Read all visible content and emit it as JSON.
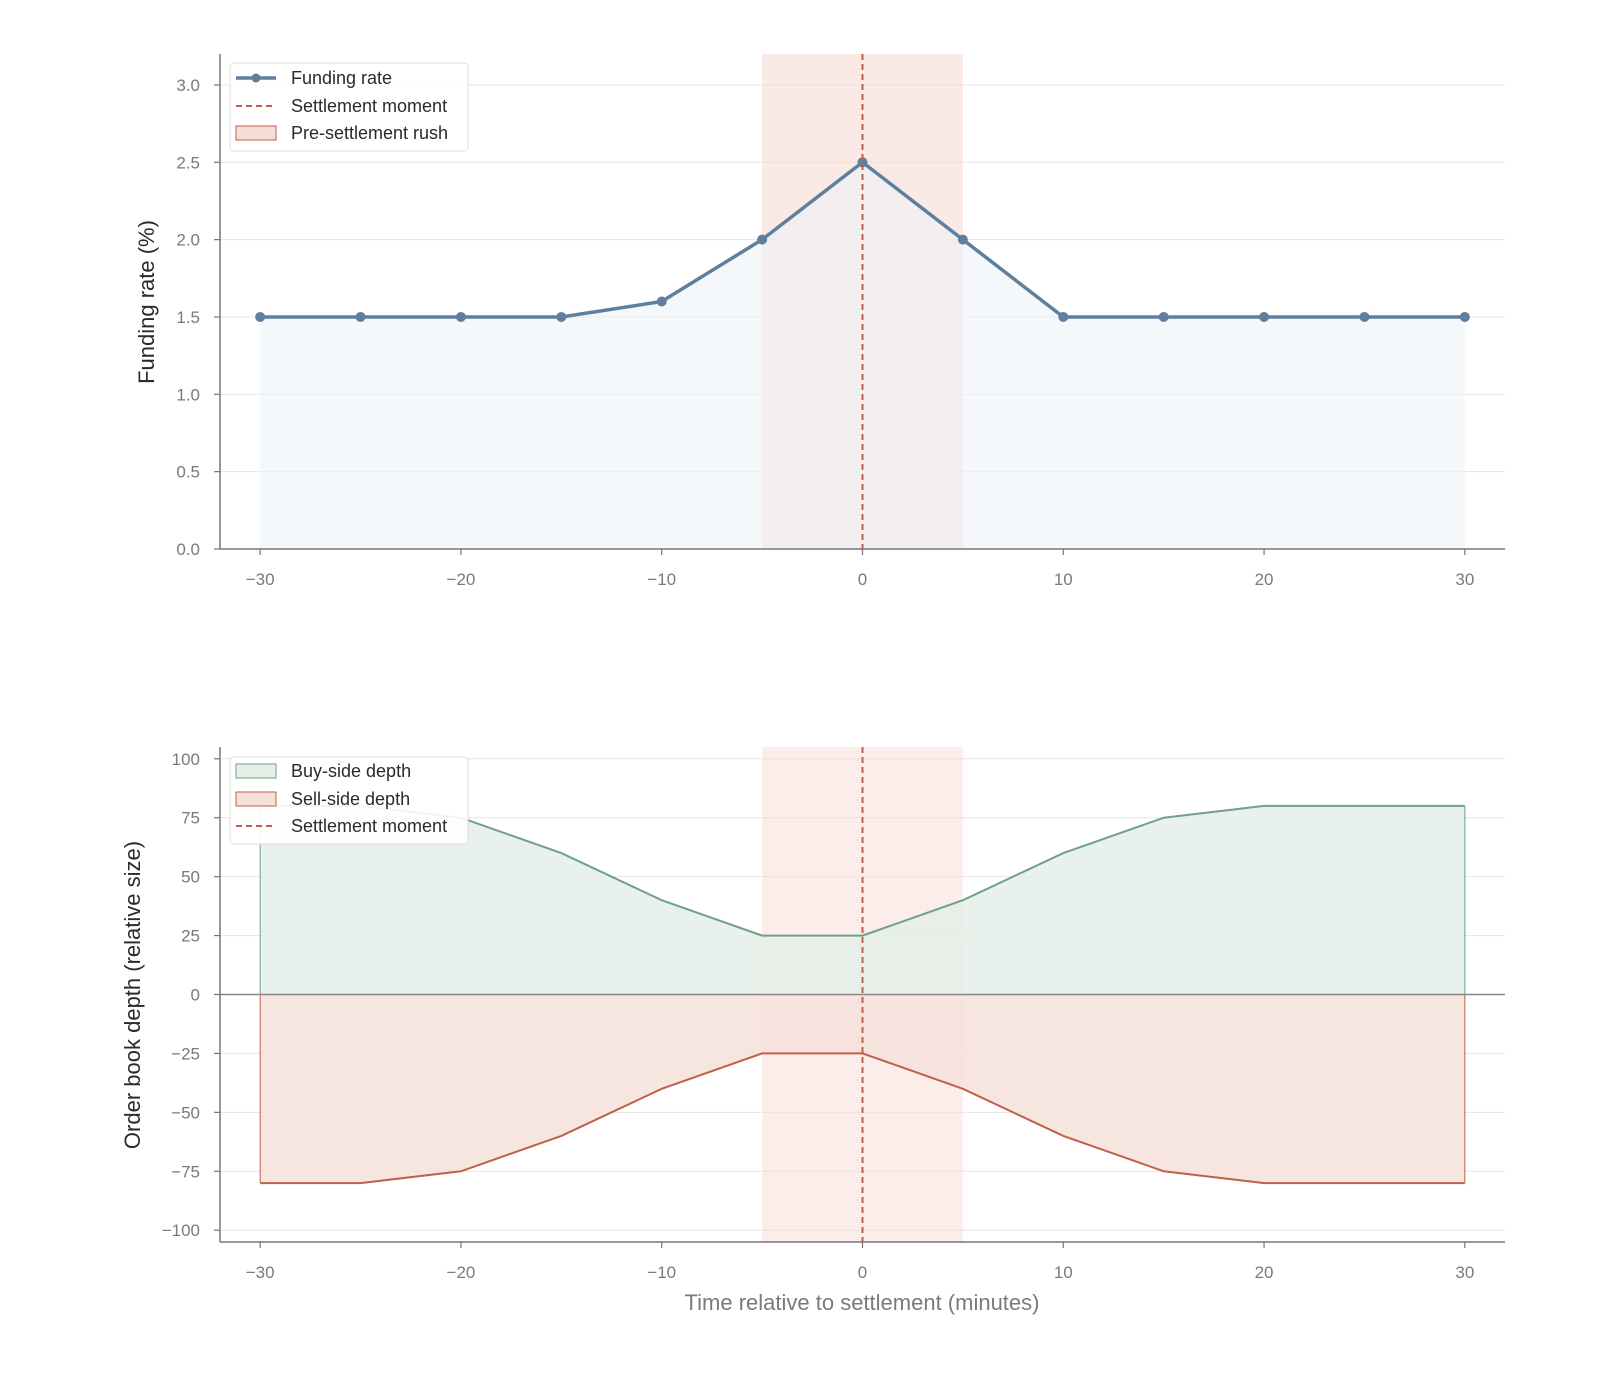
{
  "colors": {
    "funding_line": "#5f7f9e",
    "funding_fill": "#eef3f8",
    "settlement_line": "#c0604c",
    "rush_fill": "#f7ddd5",
    "buy_line": "#6fa08a",
    "buy_fill": "#e4efe8",
    "sell_line": "#c0604c",
    "sell_fill": "#f6e0da",
    "grid": "#e6e6e6",
    "axis": "#777777"
  },
  "chart_data": [
    {
      "type": "line",
      "ylabel": "Funding rate (%)",
      "xlabel": "",
      "x": [
        -30,
        -25,
        -20,
        -15,
        -10,
        -5,
        0,
        5,
        10,
        15,
        20,
        25,
        30
      ],
      "series": [
        {
          "name": "Funding rate",
          "values": [
            1.5,
            1.5,
            1.5,
            1.5,
            1.6,
            2.0,
            2.5,
            2.0,
            1.5,
            1.5,
            1.5,
            1.5,
            1.5
          ]
        }
      ],
      "xlim": [
        -32,
        32
      ],
      "ylim": [
        0,
        3.2
      ],
      "xticks": [
        -30,
        -20,
        -10,
        0,
        10,
        20,
        30
      ],
      "yticks": [
        0.0,
        0.5,
        1.0,
        1.5,
        2.0,
        2.5,
        3.0
      ],
      "ytick_labels": [
        "0.0",
        "0.5",
        "1.0",
        "1.5",
        "2.0",
        "2.5",
        "3.0"
      ],
      "settlement_x": 0,
      "rush_window": [
        -5,
        5
      ],
      "legend": [
        "Funding rate",
        "Settlement moment",
        "Pre-settlement rush"
      ],
      "legend_position": "top-left",
      "grid": "horizontal"
    },
    {
      "type": "area",
      "ylabel": "Order book depth (relative size)",
      "xlabel": "Time relative to settlement (minutes)",
      "x": [
        -30,
        -25,
        -20,
        -15,
        -10,
        -5,
        0,
        5,
        10,
        15,
        20,
        25,
        30
      ],
      "series": [
        {
          "name": "Buy-side depth",
          "values": [
            80,
            80,
            75,
            60,
            40,
            25,
            25,
            40,
            60,
            75,
            80,
            80,
            80
          ]
        },
        {
          "name": "Sell-side depth",
          "values": [
            -80,
            -80,
            -75,
            -60,
            -40,
            -25,
            -25,
            -40,
            -60,
            -75,
            -80,
            -80,
            -80
          ]
        }
      ],
      "xlim": [
        -32,
        32
      ],
      "ylim": [
        -105,
        105
      ],
      "xticks": [
        -30,
        -20,
        -10,
        0,
        10,
        20,
        30
      ],
      "yticks": [
        -100,
        -75,
        -50,
        -25,
        0,
        25,
        50,
        75,
        100
      ],
      "settlement_x": 0,
      "rush_window": [
        -5,
        5
      ],
      "legend": [
        "Buy-side depth",
        "Sell-side depth",
        "Settlement moment"
      ],
      "legend_position": "top-left",
      "grid": "horizontal"
    }
  ]
}
